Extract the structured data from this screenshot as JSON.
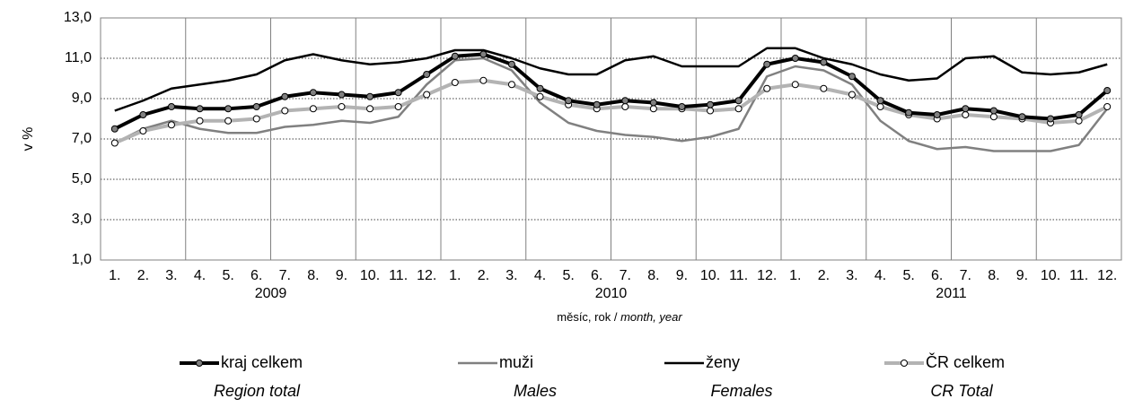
{
  "chart_data": {
    "type": "line",
    "ylabel": "v %",
    "xlabel": "měsíc, rok / ",
    "xlabel_en": "month, year",
    "categories": [
      "1.",
      "2.",
      "3.",
      "4.",
      "5.",
      "6.",
      "7.",
      "8.",
      "9.",
      "10.",
      "11.",
      "12.",
      "1.",
      "2.",
      "3.",
      "4.",
      "5.",
      "6.",
      "7.",
      "8.",
      "9.",
      "10.",
      "11.",
      "12.",
      "1.",
      "2.",
      "3.",
      "4.",
      "5.",
      "6.",
      "7.",
      "8.",
      "9.",
      "10.",
      "11.",
      "12."
    ],
    "years": [
      "2009",
      "2010",
      "2011"
    ],
    "ylim": [
      1,
      13
    ],
    "yticks": [
      {
        "value": 1,
        "label": "1,0"
      },
      {
        "value": 3,
        "label": "3,0"
      },
      {
        "value": 5,
        "label": "5,0"
      },
      {
        "value": 7,
        "label": "7,0"
      },
      {
        "value": 9,
        "label": "9,0"
      },
      {
        "value": 11,
        "label": "11,0"
      },
      {
        "value": 13,
        "label": "13,0"
      }
    ],
    "grid": true,
    "series": [
      {
        "name": "kraj celkem",
        "name_en": "Region total",
        "color": "#000000",
        "width": 4,
        "marker_fill": "#808080",
        "values": [
          7.5,
          8.2,
          8.6,
          8.5,
          8.5,
          8.6,
          9.1,
          9.3,
          9.2,
          9.1,
          9.3,
          10.2,
          11.1,
          11.2,
          10.7,
          9.5,
          8.9,
          8.7,
          8.9,
          8.8,
          8.6,
          8.7,
          8.9,
          10.7,
          11.0,
          10.8,
          10.1,
          8.9,
          8.3,
          8.2,
          8.5,
          8.4,
          8.1,
          8.0,
          8.2,
          9.4
        ]
      },
      {
        "name": "muži",
        "name_en": "Males",
        "color": "#808080",
        "width": 2.5,
        "marker_fill": null,
        "values": [
          6.8,
          7.5,
          7.9,
          7.5,
          7.3,
          7.3,
          7.6,
          7.7,
          7.9,
          7.8,
          8.1,
          9.7,
          10.9,
          11.0,
          10.4,
          8.8,
          7.8,
          7.4,
          7.2,
          7.1,
          6.9,
          7.1,
          7.5,
          10.1,
          10.6,
          10.4,
          9.7,
          7.9,
          6.9,
          6.5,
          6.6,
          6.4,
          6.4,
          6.4,
          6.7,
          8.5
        ]
      },
      {
        "name": "ženy",
        "name_en": "Females",
        "color": "#000000",
        "width": 2.5,
        "marker_fill": null,
        "values": [
          8.4,
          8.9,
          9.5,
          9.7,
          9.9,
          10.2,
          10.9,
          11.2,
          10.9,
          10.7,
          10.8,
          11.0,
          11.4,
          11.4,
          11.0,
          10.5,
          10.2,
          10.2,
          10.9,
          11.1,
          10.6,
          10.6,
          10.6,
          11.5,
          11.5,
          11.0,
          10.7,
          10.2,
          9.9,
          10.0,
          11.0,
          11.1,
          10.3,
          10.2,
          10.3,
          10.7
        ]
      },
      {
        "name": "ČR celkem",
        "name_en": "CR Total",
        "color": "#b3b3b3",
        "width": 4,
        "marker_fill": "#ffffff",
        "values": [
          6.8,
          7.4,
          7.7,
          7.9,
          7.9,
          8.0,
          8.4,
          8.5,
          8.6,
          8.5,
          8.6,
          9.2,
          9.8,
          9.9,
          9.7,
          9.1,
          8.7,
          8.5,
          8.6,
          8.5,
          8.5,
          8.4,
          8.5,
          9.5,
          9.7,
          9.5,
          9.2,
          8.6,
          8.2,
          8.0,
          8.2,
          8.1,
          8.0,
          7.8,
          7.9,
          8.6
        ]
      }
    ],
    "draw_order": [
      2,
      1,
      3,
      0
    ]
  }
}
